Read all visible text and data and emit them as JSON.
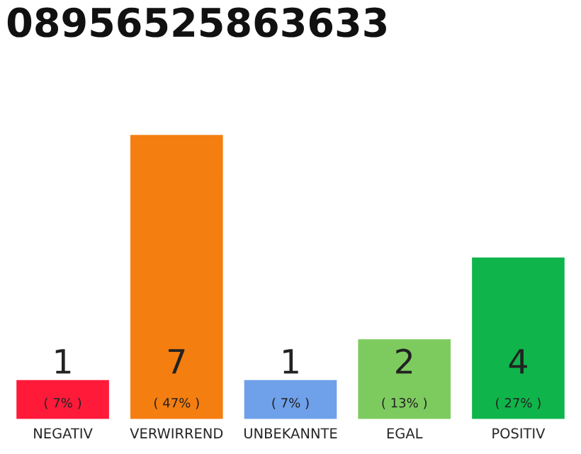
{
  "chart_data": {
    "type": "bar",
    "title": "08956525863633",
    "categories": [
      "NEGATIV",
      "VERWIRREND",
      "UNBEKANNTE",
      "EGAL",
      "POSITIV"
    ],
    "values": [
      1,
      7,
      1,
      2,
      4
    ],
    "colors": [
      "#ff1a3a",
      "#f47e0f",
      "#6fa0ea",
      "#7dcb5f",
      "#0fb54a"
    ],
    "value_labels": [
      "1\n( 7% )",
      "7\n( 47% )",
      "1\n( 7% )",
      "2\n( 13% )",
      "4\n( 27% )"
    ],
    "grid": false,
    "legend": false
  }
}
